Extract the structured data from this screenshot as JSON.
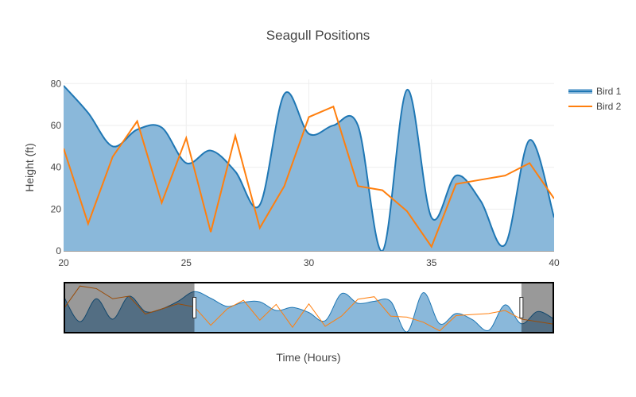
{
  "chart_data": {
    "type": "area",
    "title": "Seagull Positions",
    "xlabel": "Time (Hours)",
    "ylabel": "Height (ft)",
    "xlim": [
      20,
      40
    ],
    "ylim": [
      0,
      82
    ],
    "xticks": [
      "20",
      "25",
      "30",
      "35",
      "40"
    ],
    "yticks": [
      "0",
      "20",
      "40",
      "60",
      "80"
    ],
    "grid": true,
    "legend_position": "top-right",
    "series": [
      {
        "name": "Bird 1",
        "style": "spline-filled",
        "color": "#1f77b4",
        "fill": "#8ab8da",
        "x": [
          20,
          21,
          22,
          23,
          24,
          25,
          26,
          27,
          28,
          29,
          30,
          31,
          32,
          33,
          34,
          35,
          36,
          37,
          38,
          39,
          40
        ],
        "y": [
          79,
          66,
          50,
          58,
          59,
          42,
          48,
          38,
          22,
          75,
          56,
          60,
          60,
          0,
          77,
          16,
          36,
          24,
          3,
          53,
          16
        ]
      },
      {
        "name": "Bird 2",
        "style": "line",
        "color": "#ff7f0e",
        "x": [
          20,
          21,
          22,
          23,
          24,
          25,
          26,
          27,
          28,
          29,
          30,
          31,
          32,
          33,
          34,
          35,
          36,
          37,
          38,
          39,
          40
        ],
        "y": [
          49,
          13,
          45,
          62,
          23,
          54,
          9,
          55,
          11,
          31,
          64,
          69,
          31,
          29,
          19,
          2,
          32,
          34,
          36,
          42,
          25
        ]
      }
    ],
    "rangeslider": {
      "visible": true,
      "full_xlim": [
        12,
        42
      ],
      "selected_xlim": [
        20,
        40
      ],
      "preview_series": [
        {
          "name": "Bird 1",
          "x": [
            12,
            13,
            14,
            15,
            16,
            17,
            18,
            19,
            20,
            21,
            22,
            23,
            24,
            25,
            26,
            27,
            28,
            29,
            30,
            31,
            32,
            33,
            34,
            35,
            36,
            37,
            38,
            39,
            40,
            41,
            42
          ],
          "y": [
            70,
            20,
            65,
            25,
            70,
            40,
            45,
            60,
            79,
            66,
            50,
            58,
            59,
            42,
            48,
            38,
            22,
            75,
            56,
            60,
            60,
            0,
            77,
            16,
            36,
            24,
            3,
            53,
            16,
            40,
            25
          ]
        },
        {
          "name": "Bird 2",
          "x": [
            12,
            13,
            14,
            15,
            16,
            17,
            18,
            19,
            20,
            21,
            22,
            23,
            24,
            25,
            26,
            27,
            28,
            29,
            30,
            31,
            32,
            33,
            34,
            35,
            36,
            37,
            38,
            39,
            40,
            41,
            42
          ],
          "y": [
            45,
            90,
            85,
            65,
            70,
            35,
            45,
            55,
            49,
            13,
            45,
            62,
            23,
            54,
            9,
            55,
            11,
            31,
            64,
            69,
            31,
            29,
            19,
            2,
            32,
            34,
            36,
            42,
            25,
            20,
            15
          ]
        }
      ]
    }
  }
}
